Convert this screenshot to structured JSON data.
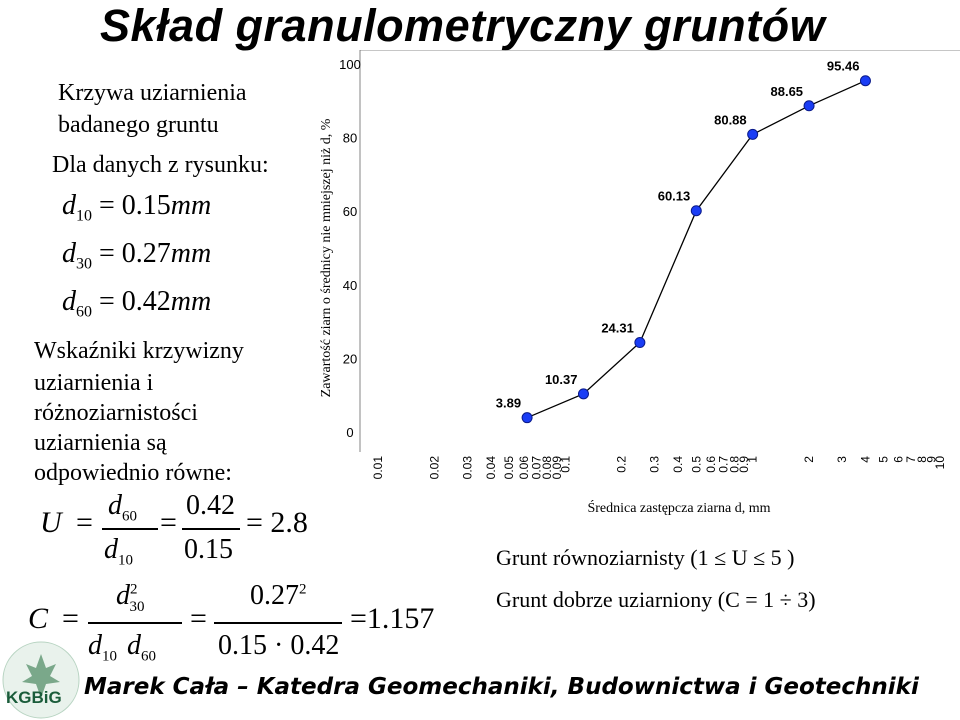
{
  "slide": {
    "title": "Skład granulometryczny gruntów",
    "footer": "Marek Cała – Katedra Geomechaniki, Budownictwa i Geotechniki",
    "logo_text": "KGBiG"
  },
  "left": {
    "curve_line1": "Krzywa uziarnienia",
    "curve_line2": "badanego gruntu",
    "data_intro": "Dla danych z rysunku:",
    "d10_sub": "10",
    "d10_value": "= 0.15",
    "d30_sub": "30",
    "d30_value": "= 0.27",
    "d60_sub": "60",
    "d60_value": "= 0.42",
    "unit": "mm",
    "ind_line1": "Wskaźniki krzywizny",
    "ind_line2": "uziarnienia i",
    "ind_line3": "różnoziarnistości",
    "ind_line4": "uziarnienia są",
    "ind_line5": "odpowiednio równe:",
    "u_symbol": "U",
    "u_num": "0.42",
    "u_den": "0.15",
    "u_result": "= 2.8",
    "c_symbol": "C",
    "c_num": "0.27",
    "c_exp": "2",
    "c_den": "0.15 · 0.42",
    "c_result": "=1.157",
    "d_letter": "d",
    "eq": "=",
    "sub10": "10",
    "sub30": "30",
    "sub60": "60"
  },
  "notes": {
    "equigranular": "Grunt równoziarnisty (1 ≤ U ≤ 5 )",
    "well_graded": "Grunt dobrze uziarniony (C = 1 ÷ 3)"
  },
  "chart_data": {
    "type": "line",
    "xscale": "log",
    "xlim": [
      0.01,
      10
    ],
    "ylim": [
      0,
      100
    ],
    "ylabel": "Zawartość ziarn o średnicy nie mniejszej niż d, %",
    "xlabel": "Średnica zastępcza ziarna d, mm",
    "yticks": [
      0,
      20,
      40,
      60,
      80,
      100
    ],
    "xticks": [
      "0.01",
      "0.02",
      "0.03",
      "0.04",
      "0.05",
      "0.06",
      "0.07",
      "0.08",
      "0.09",
      "0.1",
      "0.2",
      "0.3",
      "0.4",
      "0.5",
      "0.6",
      "0.7",
      "0.8",
      "0.9",
      "1",
      "2",
      "3",
      "4",
      "5",
      "6",
      "7",
      "8",
      "9",
      "10"
    ],
    "x": [
      0.0625,
      0.125,
      0.25,
      0.5,
      1.0,
      2.0,
      4.0
    ],
    "y": [
      3.89,
      10.37,
      24.31,
      60.13,
      80.88,
      88.65,
      95.46
    ],
    "data_labels": [
      "3.89",
      "10.37",
      "24.31",
      "60.13",
      "80.88",
      "88.65",
      "95.46"
    ],
    "line_color": "#000000",
    "marker_color": "#1a3df5",
    "grid": false
  }
}
